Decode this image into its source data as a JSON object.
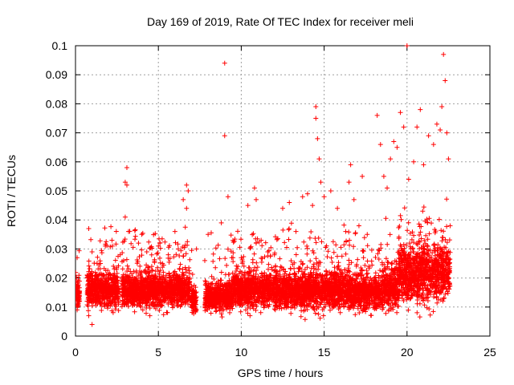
{
  "chart_data": {
    "type": "scatter",
    "title": "Day 169 of 2019, Rate Of TEC Index for receiver meli",
    "xlabel": "GPS time / hours",
    "ylabel": "ROTI / TECUs",
    "xlim": [
      0,
      25
    ],
    "ylim": [
      0,
      0.1
    ],
    "xticks": [
      0,
      5,
      10,
      15,
      20,
      25
    ],
    "xtick_labels": [
      "0",
      "5",
      "10",
      "15",
      "20",
      "25"
    ],
    "yticks": [
      0,
      0.01,
      0.02,
      0.03,
      0.04,
      0.05,
      0.06,
      0.07,
      0.08,
      0.09,
      0.1
    ],
    "ytick_labels": [
      "0",
      "0.01",
      "0.02",
      "0.03",
      "0.04",
      "0.05",
      "0.06",
      "0.07",
      "0.08",
      "0.09",
      "0.1"
    ],
    "grid": true,
    "marker": "+",
    "color": "#ff0000",
    "series": [
      {
        "name": "ROTI",
        "points": [
          [
            0.0,
            0.019
          ],
          [
            0.0,
            0.012
          ],
          [
            0.1,
            0.027
          ],
          [
            0.1,
            0.009
          ],
          [
            0.2,
            0.015
          ],
          [
            0.7,
            0.012
          ],
          [
            0.8,
            0.037
          ],
          [
            0.8,
            0.007
          ],
          [
            1.0,
            0.029
          ],
          [
            1.0,
            0.004
          ],
          [
            1.3,
            0.017
          ],
          [
            1.5,
            0.025
          ],
          [
            1.8,
            0.031
          ],
          [
            2.2,
            0.033
          ],
          [
            2.4,
            0.02
          ],
          [
            2.7,
            0.028
          ],
          [
            3.0,
            0.041
          ],
          [
            3.0,
            0.053
          ],
          [
            3.1,
            0.058
          ],
          [
            3.1,
            0.052
          ],
          [
            3.2,
            0.036
          ],
          [
            3.5,
            0.018
          ],
          [
            3.8,
            0.032
          ],
          [
            4.0,
            0.035
          ],
          [
            4.3,
            0.029
          ],
          [
            4.6,
            0.024
          ],
          [
            5.0,
            0.031
          ],
          [
            5.3,
            0.022
          ],
          [
            5.6,
            0.028
          ],
          [
            6.0,
            0.036
          ],
          [
            6.2,
            0.03
          ],
          [
            6.5,
            0.047
          ],
          [
            6.7,
            0.052
          ],
          [
            6.7,
            0.044
          ],
          [
            6.8,
            0.05
          ],
          [
            7.3,
            0.03
          ],
          [
            7.8,
            0.026
          ],
          [
            8.0,
            0.035
          ],
          [
            8.2,
            0.018
          ],
          [
            8.8,
            0.039
          ],
          [
            9.0,
            0.094
          ],
          [
            9.0,
            0.069
          ],
          [
            9.2,
            0.048
          ],
          [
            9.5,
            0.027
          ],
          [
            9.8,
            0.024
          ],
          [
            10.0,
            0.027
          ],
          [
            10.4,
            0.045
          ],
          [
            10.8,
            0.051
          ],
          [
            10.9,
            0.047
          ],
          [
            11.2,
            0.033
          ],
          [
            11.6,
            0.029
          ],
          [
            12.0,
            0.028
          ],
          [
            12.5,
            0.044
          ],
          [
            12.9,
            0.046
          ],
          [
            13.3,
            0.036
          ],
          [
            13.7,
            0.048
          ],
          [
            14.0,
            0.049
          ],
          [
            14.3,
            0.045
          ],
          [
            14.5,
            0.079
          ],
          [
            14.5,
            0.075
          ],
          [
            14.6,
            0.068
          ],
          [
            14.7,
            0.061
          ],
          [
            14.8,
            0.053
          ],
          [
            15.0,
            0.048
          ],
          [
            15.4,
            0.05
          ],
          [
            15.8,
            0.044
          ],
          [
            16.3,
            0.036
          ],
          [
            16.5,
            0.053
          ],
          [
            16.6,
            0.059
          ],
          [
            16.8,
            0.047
          ],
          [
            17.1,
            0.038
          ],
          [
            17.3,
            0.055
          ],
          [
            17.6,
            0.035
          ],
          [
            18.2,
            0.076
          ],
          [
            18.4,
            0.066
          ],
          [
            18.6,
            0.055
          ],
          [
            18.8,
            0.051
          ],
          [
            19.0,
            0.061
          ],
          [
            19.2,
            0.067
          ],
          [
            19.4,
            0.065
          ],
          [
            19.6,
            0.077
          ],
          [
            19.8,
            0.072
          ],
          [
            20.0,
            0.1
          ],
          [
            20.1,
            0.054
          ],
          [
            20.4,
            0.06
          ],
          [
            20.6,
            0.072
          ],
          [
            20.8,
            0.078
          ],
          [
            21.0,
            0.059
          ],
          [
            21.3,
            0.069
          ],
          [
            21.6,
            0.066
          ],
          [
            21.8,
            0.073
          ],
          [
            22.0,
            0.071
          ],
          [
            22.1,
            0.079
          ],
          [
            22.2,
            0.097
          ],
          [
            22.3,
            0.088
          ],
          [
            22.4,
            0.07
          ],
          [
            22.5,
            0.061
          ],
          [
            22.6,
            0.038
          ]
        ]
      }
    ]
  }
}
